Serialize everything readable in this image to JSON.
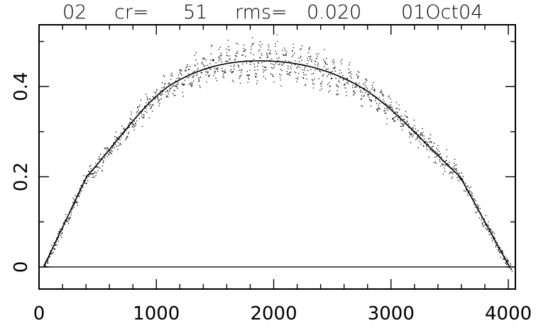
{
  "title": {
    "id": "02",
    "cr_label": "cr=",
    "cr_value": "51",
    "rms_label": "rms=",
    "rms_value": "0.020",
    "date": "01Oct04"
  },
  "chart_data": {
    "type": "scatter",
    "title": "02   cr=   51   rms=  0.020    01Oct04",
    "xlabel": "",
    "ylabel": "",
    "xlim": [
      0,
      4060
    ],
    "ylim": [
      -0.049,
      0.537
    ],
    "x_ticks": [
      0,
      1000,
      2000,
      3000,
      4000
    ],
    "x_tick_labels": [
      "0",
      "1000",
      "2000",
      "3000",
      "4000"
    ],
    "y_ticks": [
      0,
      0.2,
      0.4
    ],
    "y_tick_labels": [
      "0",
      "0.2",
      "0.4"
    ],
    "x_minor_step": 200,
    "y_minor_step": 0.1,
    "zero_line": 0,
    "grid": false,
    "legend": null,
    "series": [
      {
        "name": "fit",
        "style": "line",
        "x": [
          40,
          405,
          1100,
          1875,
          2735,
          3590,
          4010
        ],
        "y": [
          0.0,
          0.2,
          0.4,
          0.457,
          0.4,
          0.2,
          0.0
        ]
      },
      {
        "name": "data",
        "style": "points",
        "x_range": [
          40,
          4030
        ],
        "count": 1400,
        "scatter_sigma_center": 0.03,
        "scatter_sigma_edge": 0.012,
        "note_approximate": "dense point cloud around fit with banded oscillation near peak"
      }
    ]
  }
}
